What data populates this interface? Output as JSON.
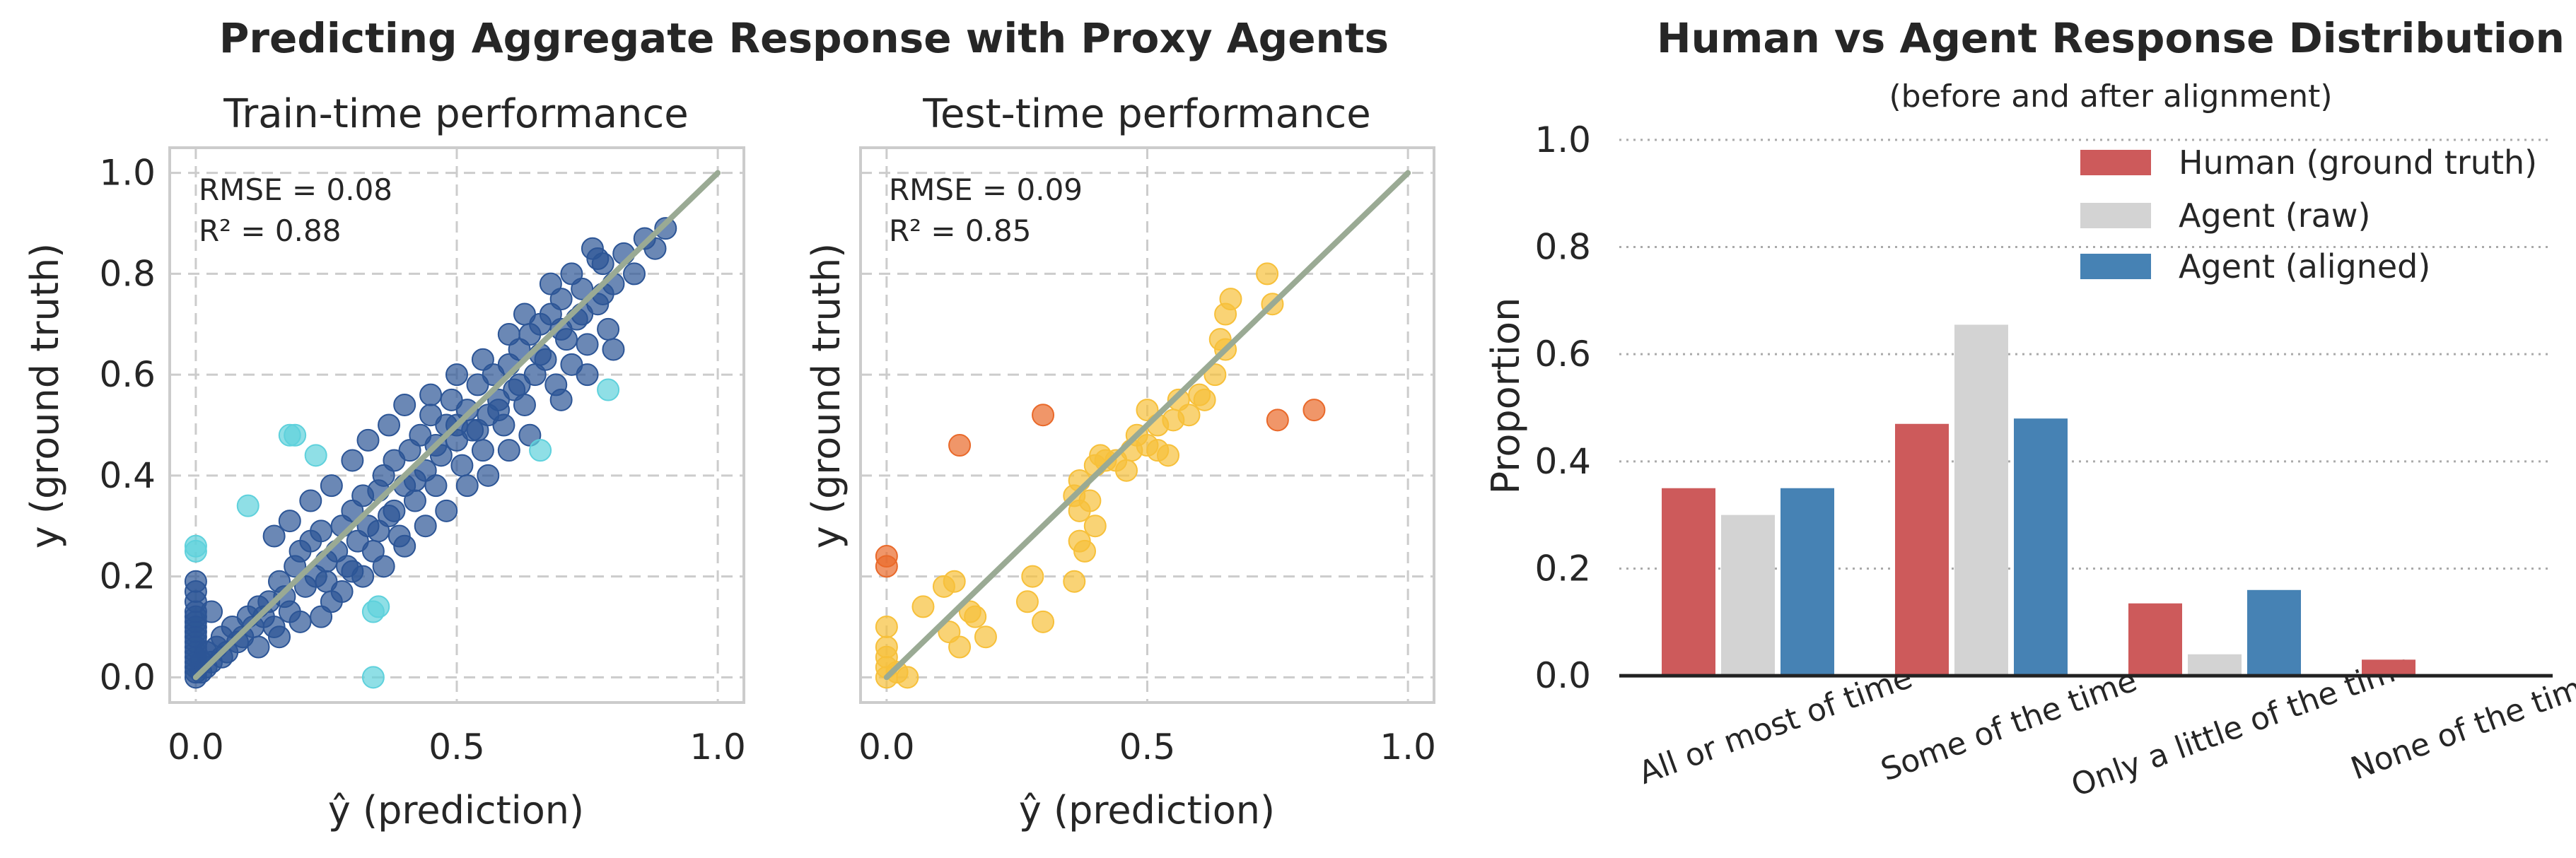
{
  "figure": {
    "left_title": "Predicting Aggregate Response with Proxy Agents",
    "right_title": "Human vs Agent Response Distribution",
    "right_subtitle": "(before and after alignment)"
  },
  "colors": {
    "train_main": "#2c5596",
    "train_outlier": "#5fd1dc",
    "test_main": "#f7c03a",
    "test_outlier": "#e9692a",
    "diagonal": "#9aaa94",
    "human": "#cd5a5b",
    "agent_raw": "#d3d3d3",
    "agent_aligned": "#4682b4"
  },
  "chart_data": [
    {
      "type": "scatter",
      "title": "Train-time performance",
      "xlabel": "ŷ (prediction)",
      "ylabel": "y (ground truth)",
      "xlim": [
        -0.05,
        1.05
      ],
      "ylim": [
        -0.05,
        1.05
      ],
      "xticks": [
        "0.0",
        "0.5",
        "1.0"
      ],
      "yticks": [
        "0.0",
        "0.2",
        "0.4",
        "0.6",
        "0.8",
        "1.0"
      ],
      "grid": true,
      "annotation": [
        "RMSE = 0.08",
        "R² = 0.88"
      ],
      "diagonal": [
        [
          0,
          0
        ],
        [
          1,
          1
        ]
      ],
      "series": [
        {
          "points": [
            [
              0,
              0
            ],
            [
              0,
              0.01
            ],
            [
              0,
              0.02
            ],
            [
              0,
              0.03
            ],
            [
              0,
              0.04
            ],
            [
              0,
              0.05
            ],
            [
              0,
              0.06
            ],
            [
              0,
              0.07
            ],
            [
              0,
              0.08
            ],
            [
              0,
              0.09
            ],
            [
              0,
              0.1
            ],
            [
              0,
              0.11
            ],
            [
              0,
              0.12
            ],
            [
              0,
              0.13
            ],
            [
              0,
              0.15
            ],
            [
              0,
              0.17
            ],
            [
              0,
              0.19
            ],
            [
              0.01,
              0.01
            ],
            [
              0.01,
              0.03
            ],
            [
              0.02,
              0.02
            ],
            [
              0.02,
              0.05
            ],
            [
              0.03,
              0.03
            ],
            [
              0.03,
              0.13
            ],
            [
              0.04,
              0.06
            ],
            [
              0.05,
              0.04
            ],
            [
              0.05,
              0.08
            ],
            [
              0.06,
              0.05
            ],
            [
              0.07,
              0.1
            ],
            [
              0.08,
              0.07
            ],
            [
              0.09,
              0.08
            ],
            [
              0.1,
              0.12
            ],
            [
              0.11,
              0.1
            ],
            [
              0.12,
              0.14
            ],
            [
              0.13,
              0.12
            ],
            [
              0.14,
              0.15
            ],
            [
              0.15,
              0.1
            ],
            [
              0.16,
              0.19
            ],
            [
              0.17,
              0.16
            ],
            [
              0.18,
              0.13
            ],
            [
              0.19,
              0.22
            ],
            [
              0.2,
              0.25
            ],
            [
              0.21,
              0.18
            ],
            [
              0.22,
              0.27
            ],
            [
              0.23,
              0.2
            ],
            [
              0.24,
              0.29
            ],
            [
              0.25,
              0.23
            ],
            [
              0.26,
              0.15
            ],
            [
              0.27,
              0.25
            ],
            [
              0.28,
              0.3
            ],
            [
              0.29,
              0.22
            ],
            [
              0.3,
              0.33
            ],
            [
              0.31,
              0.27
            ],
            [
              0.32,
              0.36
            ],
            [
              0.33,
              0.3
            ],
            [
              0.34,
              0.25
            ],
            [
              0.35,
              0.37
            ],
            [
              0.36,
              0.4
            ],
            [
              0.37,
              0.32
            ],
            [
              0.38,
              0.43
            ],
            [
              0.39,
              0.28
            ],
            [
              0.4,
              0.38
            ],
            [
              0.41,
              0.45
            ],
            [
              0.42,
              0.35
            ],
            [
              0.43,
              0.48
            ],
            [
              0.44,
              0.41
            ],
            [
              0.45,
              0.52
            ],
            [
              0.46,
              0.38
            ],
            [
              0.47,
              0.44
            ],
            [
              0.48,
              0.5
            ],
            [
              0.49,
              0.55
            ],
            [
              0.5,
              0.47
            ],
            [
              0.51,
              0.42
            ],
            [
              0.52,
              0.53
            ],
            [
              0.53,
              0.49
            ],
            [
              0.54,
              0.58
            ],
            [
              0.55,
              0.45
            ],
            [
              0.56,
              0.52
            ],
            [
              0.57,
              0.6
            ],
            [
              0.58,
              0.55
            ],
            [
              0.59,
              0.5
            ],
            [
              0.6,
              0.62
            ],
            [
              0.61,
              0.57
            ],
            [
              0.62,
              0.65
            ],
            [
              0.63,
              0.54
            ],
            [
              0.64,
              0.68
            ],
            [
              0.65,
              0.6
            ],
            [
              0.66,
              0.7
            ],
            [
              0.67,
              0.63
            ],
            [
              0.68,
              0.72
            ],
            [
              0.69,
              0.58
            ],
            [
              0.7,
              0.75
            ],
            [
              0.71,
              0.67
            ],
            [
              0.72,
              0.62
            ],
            [
              0.73,
              0.71
            ],
            [
              0.74,
              0.77
            ],
            [
              0.75,
              0.66
            ],
            [
              0.76,
              0.85
            ],
            [
              0.77,
              0.74
            ],
            [
              0.78,
              0.82
            ],
            [
              0.79,
              0.69
            ],
            [
              0.8,
              0.78
            ],
            [
              0.82,
              0.84
            ],
            [
              0.84,
              0.8
            ],
            [
              0.86,
              0.87
            ],
            [
              0.88,
              0.85
            ],
            [
              0.9,
              0.89
            ],
            [
              0.15,
              0.28
            ],
            [
              0.18,
              0.31
            ],
            [
              0.22,
              0.35
            ],
            [
              0.26,
              0.38
            ],
            [
              0.3,
              0.43
            ],
            [
              0.33,
              0.47
            ],
            [
              0.37,
              0.5
            ],
            [
              0.4,
              0.54
            ],
            [
              0.45,
              0.56
            ],
            [
              0.5,
              0.6
            ],
            [
              0.55,
              0.63
            ],
            [
              0.6,
              0.68
            ],
            [
              0.63,
              0.72
            ],
            [
              0.68,
              0.78
            ],
            [
              0.72,
              0.8
            ],
            [
              0.77,
              0.83
            ],
            [
              0.12,
              0.06
            ],
            [
              0.16,
              0.08
            ],
            [
              0.2,
              0.11
            ],
            [
              0.24,
              0.12
            ],
            [
              0.28,
              0.17
            ],
            [
              0.32,
              0.2
            ],
            [
              0.36,
              0.22
            ],
            [
              0.4,
              0.26
            ],
            [
              0.44,
              0.3
            ],
            [
              0.48,
              0.33
            ],
            [
              0.52,
              0.38
            ],
            [
              0.56,
              0.4
            ],
            [
              0.6,
              0.45
            ],
            [
              0.64,
              0.48
            ],
            [
              0.7,
              0.55
            ],
            [
              0.75,
              0.6
            ],
            [
              0.8,
              0.65
            ],
            [
              0.25,
              0.19
            ],
            [
              0.3,
              0.21
            ],
            [
              0.35,
              0.29
            ],
            [
              0.38,
              0.33
            ],
            [
              0.42,
              0.39
            ],
            [
              0.46,
              0.46
            ],
            [
              0.5,
              0.5
            ],
            [
              0.54,
              0.49
            ],
            [
              0.58,
              0.53
            ],
            [
              0.62,
              0.58
            ],
            [
              0.66,
              0.64
            ],
            [
              0.7,
              0.69
            ],
            [
              0.74,
              0.72
            ],
            [
              0.78,
              0.76
            ]
          ]
        },
        {
          "points": [
            [
              0,
              0.25
            ],
            [
              0,
              0.26
            ],
            [
              0.1,
              0.34
            ],
            [
              0.18,
              0.48
            ],
            [
              0.19,
              0.48
            ],
            [
              0.23,
              0.44
            ],
            [
              0.34,
              0.13
            ],
            [
              0.35,
              0.14
            ],
            [
              0.34,
              0.0
            ],
            [
              0.66,
              0.45
            ],
            [
              0.79,
              0.57
            ]
          ]
        }
      ]
    },
    {
      "type": "scatter",
      "title": "Test-time performance",
      "xlabel": "ŷ (prediction)",
      "ylabel": "y (ground truth)",
      "xlim": [
        -0.05,
        1.05
      ],
      "ylim": [
        -0.05,
        1.05
      ],
      "xticks": [
        "0.0",
        "0.5",
        "1.0"
      ],
      "grid": true,
      "annotation": [
        "RMSE = 0.09",
        "R² = 0.85"
      ],
      "diagonal": [
        [
          0,
          0
        ],
        [
          1,
          1
        ]
      ],
      "series": [
        {
          "points": [
            [
              0,
              0
            ],
            [
              0,
              0.02
            ],
            [
              0,
              0.04
            ],
            [
              0,
              0.06
            ],
            [
              0,
              0.1
            ],
            [
              0.02,
              0.01
            ],
            [
              0.04,
              0.0
            ],
            [
              0.07,
              0.14
            ],
            [
              0.11,
              0.18
            ],
            [
              0.13,
              0.19
            ],
            [
              0.12,
              0.09
            ],
            [
              0.14,
              0.06
            ],
            [
              0.16,
              0.13
            ],
            [
              0.17,
              0.12
            ],
            [
              0.19,
              0.08
            ],
            [
              0.27,
              0.15
            ],
            [
              0.28,
              0.2
            ],
            [
              0.3,
              0.11
            ],
            [
              0.36,
              0.36
            ],
            [
              0.36,
              0.19
            ],
            [
              0.37,
              0.39
            ],
            [
              0.37,
              0.33
            ],
            [
              0.37,
              0.27
            ],
            [
              0.38,
              0.25
            ],
            [
              0.39,
              0.35
            ],
            [
              0.4,
              0.3
            ],
            [
              0.4,
              0.42
            ],
            [
              0.41,
              0.44
            ],
            [
              0.42,
              0.43
            ],
            [
              0.44,
              0.43
            ],
            [
              0.46,
              0.41
            ],
            [
              0.47,
              0.45
            ],
            [
              0.48,
              0.48
            ],
            [
              0.5,
              0.46
            ],
            [
              0.5,
              0.53
            ],
            [
              0.52,
              0.5
            ],
            [
              0.52,
              0.45
            ],
            [
              0.54,
              0.44
            ],
            [
              0.55,
              0.51
            ],
            [
              0.56,
              0.55
            ],
            [
              0.58,
              0.52
            ],
            [
              0.6,
              0.56
            ],
            [
              0.61,
              0.55
            ],
            [
              0.63,
              0.6
            ],
            [
              0.64,
              0.67
            ],
            [
              0.65,
              0.72
            ],
            [
              0.65,
              0.65
            ],
            [
              0.66,
              0.75
            ],
            [
              0.73,
              0.8
            ],
            [
              0.74,
              0.74
            ]
          ]
        },
        {
          "points": [
            [
              0,
              0.24
            ],
            [
              0,
              0.22
            ],
            [
              0.14,
              0.46
            ],
            [
              0.3,
              0.52
            ],
            [
              0.75,
              0.51
            ],
            [
              0.82,
              0.53
            ]
          ]
        }
      ]
    },
    {
      "type": "bar",
      "ylabel": "Proportion",
      "ylim": [
        -0.05,
        1.05
      ],
      "yticks": [
        "0.0",
        "0.2",
        "0.4",
        "0.6",
        "0.8",
        "1.0"
      ],
      "grid": true,
      "legend_placement": "top-right",
      "categories": [
        "All or most of time",
        "Some of the time",
        "Only a little of the time",
        "None of the time"
      ],
      "series": [
        {
          "name": "Human (ground truth)",
          "values": [
            0.35,
            0.47,
            0.135,
            0.03
          ]
        },
        {
          "name": "Agent (raw)",
          "values": [
            0.3,
            0.655,
            0.04,
            0.0
          ]
        },
        {
          "name": "Agent (aligned)",
          "values": [
            0.35,
            0.48,
            0.16,
            0.0
          ]
        }
      ]
    }
  ]
}
